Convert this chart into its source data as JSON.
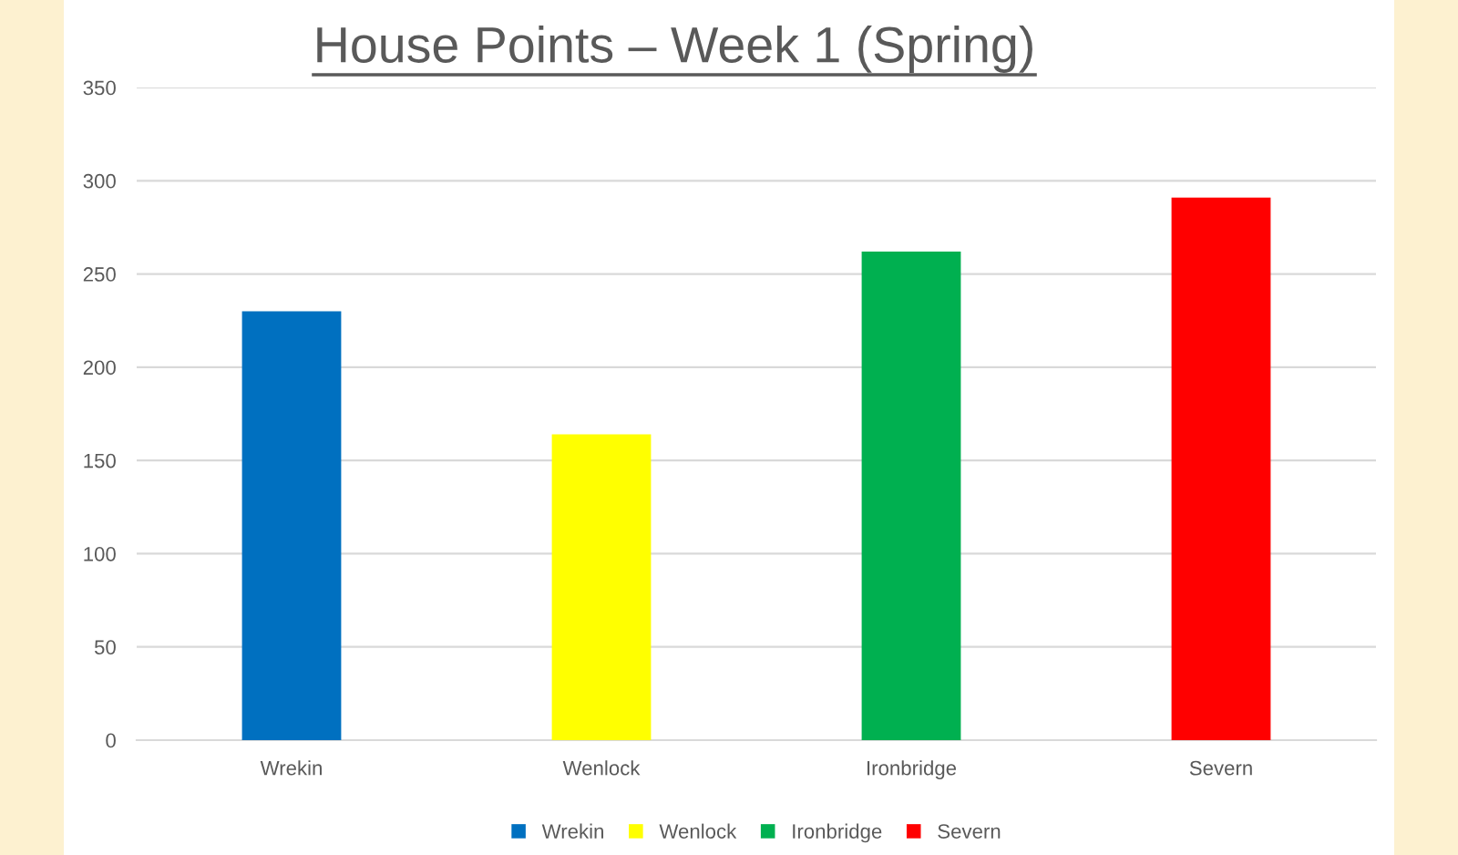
{
  "chart_data": {
    "type": "bar",
    "title": "House Points – Week 1 (Spring)",
    "categories": [
      "Wrekin",
      "Wenlock",
      "Ironbridge",
      "Severn"
    ],
    "series": [
      {
        "name": "Wrekin",
        "color": "#0070c0",
        "values": [
          230,
          null,
          null,
          null
        ]
      },
      {
        "name": "Wenlock",
        "color": "#ffff00",
        "values": [
          null,
          164,
          null,
          null
        ]
      },
      {
        "name": "Ironbridge",
        "color": "#00b050",
        "values": [
          null,
          null,
          262,
          null
        ]
      },
      {
        "name": "Severn",
        "color": "#ff0000",
        "values": [
          null,
          null,
          null,
          291
        ]
      }
    ],
    "ylim": [
      0,
      350
    ],
    "yticks": [
      0,
      50,
      100,
      150,
      200,
      250,
      300,
      350
    ],
    "grid": "y",
    "legend": "bottom"
  }
}
